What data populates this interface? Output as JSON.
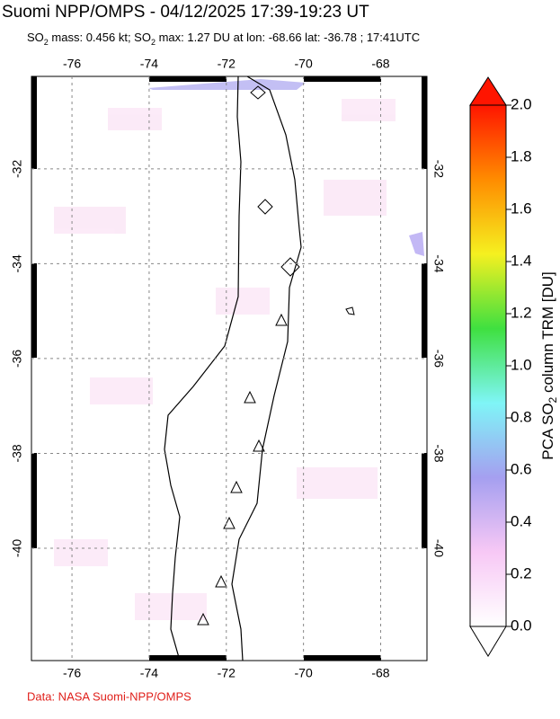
{
  "header": {
    "title": "Suomi NPP/OMPS - 04/12/2025 17:39-19:23 UT",
    "subtitle": [
      "SO",
      "2",
      " mass: 0.456 kt; SO",
      "2",
      " max: 1.27 DU at lon: -68.66 lat: -36.78 ; 17:41UTC"
    ]
  },
  "map": {
    "xlim": [
      -77.05,
      -66.8
    ],
    "ylim": [
      -42.37,
      -30.05
    ],
    "xticks": [
      -76,
      -74,
      -72,
      -70,
      -68
    ],
    "yticks": [
      -32,
      -34,
      -36,
      -38,
      -40
    ],
    "grid": true
  },
  "colorbar": {
    "label": [
      "PCA SO",
      "2",
      " column TRM [DU]"
    ],
    "lim": [
      0,
      2
    ],
    "ticks": [
      {
        "value": 0,
        "label": "0.0"
      },
      0.2,
      0.4,
      0.6,
      0.8,
      {
        "value": 1,
        "label": "1.0"
      },
      1.2,
      1.4,
      1.6,
      1.8,
      {
        "value": 2,
        "label": "2.0"
      }
    ],
    "colors": [
      "#ffffff",
      "#f7c8f5",
      "#a59ff0",
      "#7ff5f7",
      "#3fe040",
      "#f5f020",
      "#ff8c00",
      "#ff1500"
    ]
  },
  "footer": {
    "credit": "Data: NASA Suomi-NPP/OMPS"
  }
}
